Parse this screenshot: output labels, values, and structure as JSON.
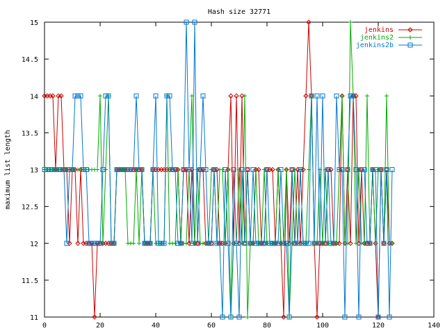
{
  "chart_data": {
    "type": "line",
    "title": "Hash size 32771",
    "xlabel": "",
    "ylabel": "maximum list length",
    "xlim": [
      0,
      140
    ],
    "ylim": [
      11,
      15
    ],
    "xticks": [
      0,
      20,
      40,
      60,
      80,
      100,
      120,
      140
    ],
    "yticks": [
      11,
      11.5,
      12,
      12.5,
      13,
      13.5,
      14,
      14.5,
      15
    ],
    "grid": false,
    "legend_position": "top-right",
    "series": [
      {
        "name": "jenkins",
        "color": "#cc0000",
        "marker": "diamond",
        "x": [
          0,
          1,
          2,
          3,
          4,
          5,
          6,
          7,
          8,
          9,
          10,
          11,
          12,
          13,
          14,
          15,
          16,
          17,
          18,
          19,
          20,
          21,
          22,
          23,
          24,
          25,
          26,
          27,
          28,
          29,
          30,
          31,
          32,
          33,
          34,
          35,
          36,
          37,
          38,
          39,
          40,
          41,
          42,
          43,
          44,
          45,
          46,
          47,
          48,
          49,
          50,
          51,
          52,
          53,
          54,
          55,
          56,
          57,
          58,
          59,
          60,
          61,
          62,
          63,
          64,
          65,
          66,
          67,
          68,
          69,
          70,
          71,
          72,
          73,
          74,
          75,
          76,
          77,
          78,
          79,
          80,
          81,
          82,
          83,
          84,
          85,
          86,
          87,
          88,
          89,
          90,
          91,
          92,
          93,
          94,
          95,
          96,
          97,
          98,
          99,
          100,
          101,
          102,
          103,
          104,
          105,
          106,
          107,
          108,
          109,
          110,
          111,
          112,
          113,
          114,
          115,
          116,
          117,
          118,
          119,
          120,
          121,
          122,
          123,
          124,
          125
        ],
        "y": [
          14,
          14,
          14,
          14,
          13,
          14,
          14,
          13,
          13,
          12,
          13,
          13,
          12,
          13,
          12,
          12,
          12,
          12,
          11,
          12,
          12,
          12,
          12,
          12,
          12,
          12,
          13,
          13,
          13,
          13,
          13,
          13,
          13,
          13,
          13,
          13,
          12,
          12,
          12,
          13,
          13,
          13,
          13,
          13,
          13,
          13,
          13,
          13,
          13,
          12,
          13,
          13,
          12,
          13,
          12,
          12,
          13,
          13,
          12,
          12,
          12,
          13,
          13,
          12,
          12,
          12,
          13,
          14,
          12,
          14,
          12,
          14,
          12,
          13,
          12,
          12,
          13,
          13,
          12,
          12,
          13,
          13,
          13,
          12,
          13,
          12,
          11,
          13,
          12,
          13,
          12,
          13,
          12,
          13,
          14,
          15,
          14,
          12,
          11,
          12,
          12,
          12,
          13,
          13,
          12,
          12,
          12,
          14,
          12,
          13,
          12,
          14,
          14,
          12,
          13,
          12,
          12,
          12,
          13,
          12,
          11,
          13,
          12,
          13,
          12,
          12
        ]
      },
      {
        "name": "jenkins2",
        "color": "#00aa00",
        "marker": "plus",
        "x": [
          0,
          1,
          2,
          3,
          4,
          5,
          6,
          7,
          8,
          9,
          10,
          11,
          12,
          13,
          14,
          15,
          16,
          17,
          18,
          19,
          20,
          21,
          22,
          23,
          24,
          25,
          26,
          27,
          28,
          29,
          30,
          31,
          32,
          33,
          34,
          35,
          36,
          37,
          38,
          39,
          40,
          41,
          42,
          43,
          44,
          45,
          46,
          47,
          48,
          49,
          50,
          51,
          52,
          53,
          54,
          55,
          56,
          57,
          58,
          59,
          60,
          61,
          62,
          63,
          64,
          65,
          66,
          67,
          68,
          69,
          70,
          71,
          72,
          73,
          74,
          75,
          76,
          77,
          78,
          79,
          80,
          81,
          82,
          83,
          84,
          85,
          86,
          87,
          88,
          89,
          90,
          91,
          92,
          93,
          94,
          95,
          96,
          97,
          98,
          99,
          100,
          101,
          102,
          103,
          104,
          105,
          106,
          107,
          108,
          109,
          110,
          111,
          112,
          113,
          114,
          115,
          116,
          117,
          118,
          119,
          120,
          121,
          122,
          123,
          124,
          125
        ],
        "y": [
          13,
          13,
          13,
          13,
          13,
          13,
          13,
          13,
          13,
          13,
          13,
          13,
          13,
          13,
          13,
          13,
          13,
          13,
          13,
          13,
          14,
          12,
          13,
          14,
          12,
          12,
          13,
          13,
          13,
          13,
          12,
          12,
          12,
          13,
          12,
          13,
          12,
          12,
          12,
          13,
          12,
          12,
          12,
          12,
          14,
          12,
          12,
          12,
          13,
          12,
          12,
          12,
          13,
          14,
          12,
          13,
          12,
          12,
          12,
          12,
          13,
          13,
          12,
          13,
          13,
          12,
          13,
          11,
          12,
          12,
          13,
          12,
          14,
          11,
          12,
          12,
          13,
          12,
          12,
          13,
          12,
          12,
          12,
          12,
          13,
          12,
          12,
          13,
          11,
          12,
          13,
          12,
          13,
          12,
          12,
          13,
          14,
          12,
          12,
          13,
          12,
          13,
          12,
          12,
          12,
          12,
          13,
          14,
          12,
          12,
          15,
          14,
          12,
          13,
          12,
          12,
          14,
          12,
          13,
          12,
          13,
          13,
          12,
          14,
          12,
          12
        ]
      },
      {
        "name": "jenkins2b",
        "color": "#0077cc",
        "marker": "square",
        "x": [
          0,
          1,
          2,
          3,
          4,
          5,
          6,
          7,
          8,
          9,
          10,
          11,
          12,
          13,
          14,
          15,
          16,
          17,
          18,
          19,
          20,
          21,
          22,
          23,
          24,
          25,
          26,
          27,
          28,
          29,
          30,
          31,
          32,
          33,
          34,
          35,
          36,
          37,
          38,
          39,
          40,
          41,
          42,
          43,
          44,
          45,
          46,
          47,
          48,
          49,
          50,
          51,
          52,
          53,
          54,
          55,
          56,
          57,
          58,
          59,
          60,
          61,
          62,
          63,
          64,
          65,
          66,
          67,
          68,
          69,
          70,
          71,
          72,
          73,
          74,
          75,
          76,
          77,
          78,
          79,
          80,
          81,
          82,
          83,
          84,
          85,
          86,
          87,
          88,
          89,
          90,
          91,
          92,
          93,
          94,
          95,
          96,
          97,
          98,
          99,
          100,
          101,
          102,
          103,
          104,
          105,
          106,
          107,
          108,
          109,
          110,
          111,
          112,
          113,
          114,
          115,
          116,
          117,
          118,
          119,
          120,
          121,
          122,
          123,
          124,
          125
        ],
        "y": [
          13,
          13,
          13,
          13,
          13,
          13,
          13,
          13,
          12,
          13,
          13,
          14,
          14,
          14,
          13,
          13,
          12,
          12,
          12,
          12,
          12,
          13,
          14,
          14,
          12,
          12,
          13,
          13,
          13,
          13,
          13,
          13,
          13,
          14,
          13,
          13,
          12,
          12,
          12,
          13,
          14,
          12,
          12,
          12,
          14,
          14,
          13,
          13,
          12,
          12,
          13,
          15,
          13,
          12,
          15,
          12,
          13,
          14,
          13,
          12,
          12,
          13,
          12,
          12,
          11,
          13,
          12,
          11,
          13,
          12,
          11,
          13,
          12,
          13,
          12,
          13,
          12,
          12,
          12,
          12,
          13,
          12,
          12,
          12,
          12,
          13,
          12,
          12,
          11,
          13,
          12,
          12,
          13,
          12,
          12,
          12,
          14,
          12,
          14,
          12,
          14,
          12,
          13,
          12,
          12,
          14,
          13,
          13,
          11,
          13,
          14,
          14,
          13,
          11,
          13,
          13,
          12,
          12,
          13,
          13,
          11,
          13,
          12,
          13,
          11,
          13
        ]
      }
    ]
  }
}
